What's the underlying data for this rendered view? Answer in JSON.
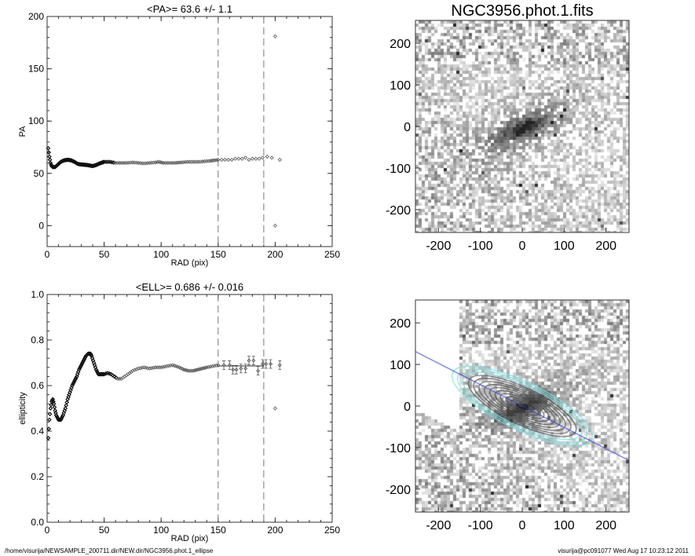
{
  "footer": {
    "left": "/home/visurija/NEWSAMPLE_200711.dir/NEW.dir/NGC3956.phot.1_ellipse",
    "right": "visurija@pc091077  Wed Aug 17 10:23:12 2011"
  },
  "chart_data": [
    {
      "type": "scatter",
      "title": "<PA>=  63.6 +/-   1.1",
      "xlabel": "RAD (pix)",
      "ylabel": "PA",
      "xlim": [
        0,
        250
      ],
      "ylim": [
        -20,
        200
      ],
      "xticks": [
        0,
        50,
        100,
        150,
        200,
        250
      ],
      "yticks": [
        0,
        50,
        100,
        150,
        200
      ],
      "vlines": [
        150,
        190
      ],
      "points": [
        [
          1,
          74
        ],
        [
          1.5,
          70
        ],
        [
          2,
          66
        ],
        [
          3,
          60
        ],
        [
          4,
          57
        ],
        [
          5,
          56
        ],
        [
          7,
          56
        ],
        [
          9,
          58
        ],
        [
          12,
          61
        ],
        [
          15,
          62.5
        ],
        [
          18,
          63
        ],
        [
          21,
          62.5
        ],
        [
          24,
          61
        ],
        [
          27,
          59
        ],
        [
          30,
          58.5
        ],
        [
          35,
          58
        ],
        [
          40,
          57
        ],
        [
          43,
          58
        ],
        [
          46,
          59.5
        ],
        [
          50,
          61
        ],
        [
          55,
          61
        ],
        [
          60,
          60
        ],
        [
          65,
          60
        ],
        [
          70,
          60
        ],
        [
          75,
          60.5
        ],
        [
          80,
          60
        ],
        [
          85,
          59.5
        ],
        [
          90,
          60
        ],
        [
          95,
          60.5
        ],
        [
          98,
          61
        ],
        [
          102,
          60
        ],
        [
          107,
          60
        ],
        [
          112,
          60
        ],
        [
          118,
          60.5
        ],
        [
          123,
          61
        ],
        [
          128,
          61
        ],
        [
          133,
          61
        ],
        [
          138,
          61.5
        ],
        [
          143,
          62
        ],
        [
          147,
          62.5
        ],
        [
          150,
          63
        ],
        [
          153,
          63
        ],
        [
          156,
          63
        ],
        [
          159,
          63
        ],
        [
          162,
          63
        ],
        [
          165,
          64
        ],
        [
          168,
          64
        ],
        [
          171,
          64
        ],
        [
          174,
          65
        ],
        [
          177,
          63
        ],
        [
          180,
          64
        ],
        [
          183,
          64
        ],
        [
          186,
          64
        ],
        [
          189,
          65
        ],
        [
          193,
          66
        ],
        [
          197,
          65
        ],
        [
          200,
          181
        ],
        [
          200,
          0
        ],
        [
          204,
          63
        ]
      ]
    },
    {
      "type": "scatter",
      "title": "<ELL>= 0.686 +/-  0.016",
      "xlabel": "RAD (pix)",
      "ylabel": "ellipticity",
      "xlim": [
        0,
        250
      ],
      "ylim": [
        0,
        1
      ],
      "xticks": [
        0,
        50,
        100,
        150,
        200,
        250
      ],
      "yticks": [
        "0.0",
        "0.2",
        "0.4",
        "0.6",
        "0.8",
        "1.0"
      ],
      "vlines": [
        150,
        190
      ],
      "mean_line": {
        "value": 0.686,
        "x": [
          150,
          190
        ]
      },
      "points": [
        [
          1,
          0.37
        ],
        [
          1.5,
          0.41
        ],
        [
          2,
          0.45
        ],
        [
          3,
          0.5
        ],
        [
          4,
          0.53
        ],
        [
          5,
          0.54
        ],
        [
          6,
          0.52
        ],
        [
          7,
          0.49
        ],
        [
          8,
          0.47
        ],
        [
          10,
          0.45
        ],
        [
          12,
          0.45
        ],
        [
          14,
          0.47
        ],
        [
          16,
          0.5
        ],
        [
          18,
          0.54
        ],
        [
          20,
          0.57
        ],
        [
          22,
          0.6
        ],
        [
          24,
          0.62
        ],
        [
          26,
          0.64
        ],
        [
          28,
          0.67
        ],
        [
          30,
          0.69
        ],
        [
          32,
          0.71
        ],
        [
          34,
          0.73
        ],
        [
          36,
          0.74
        ],
        [
          38,
          0.74
        ],
        [
          39,
          0.73
        ],
        [
          41,
          0.7
        ],
        [
          43,
          0.67
        ],
        [
          45,
          0.65
        ],
        [
          48,
          0.65
        ],
        [
          50,
          0.65
        ],
        [
          53,
          0.655
        ],
        [
          56,
          0.65
        ],
        [
          59,
          0.64
        ],
        [
          62,
          0.63
        ],
        [
          65,
          0.63
        ],
        [
          68,
          0.64
        ],
        [
          71,
          0.65
        ],
        [
          75,
          0.665
        ],
        [
          80,
          0.675
        ],
        [
          85,
          0.68
        ],
        [
          90,
          0.675
        ],
        [
          95,
          0.68
        ],
        [
          100,
          0.68
        ],
        [
          105,
          0.685
        ],
        [
          110,
          0.69
        ],
        [
          113,
          0.685
        ],
        [
          116,
          0.68
        ],
        [
          120,
          0.67
        ],
        [
          124,
          0.665
        ],
        [
          128,
          0.665
        ],
        [
          132,
          0.67
        ],
        [
          136,
          0.675
        ],
        [
          140,
          0.68
        ],
        [
          145,
          0.685
        ],
        [
          150,
          0.69
        ],
        [
          155,
          0.69
        ],
        [
          160,
          0.69
        ],
        [
          163,
          0.67
        ],
        [
          166,
          0.67
        ],
        [
          170,
          0.675
        ],
        [
          174,
          0.675
        ],
        [
          177,
          0.71
        ],
        [
          181,
          0.71
        ],
        [
          185,
          0.665
        ],
        [
          189,
          0.695
        ],
        [
          192,
          0.695
        ],
        [
          196,
          0.695
        ],
        [
          200,
          0.5
        ],
        [
          204,
          0.69
        ]
      ],
      "error_from_radius": 155,
      "error": 0.012
    },
    {
      "type": "heatmap",
      "title": "NGC3956.phot.1.fits",
      "xlim": [
        -255,
        255
      ],
      "ylim": [
        -255,
        255
      ],
      "xticks": [
        -200,
        -100,
        0,
        100,
        200
      ],
      "yticks": [
        -200,
        -100,
        0,
        100,
        200
      ],
      "galaxy_pa": 63.6,
      "galaxy_ell": 0.686
    },
    {
      "type": "heatmap",
      "title": "",
      "xlim": [
        -255,
        255
      ],
      "ylim": [
        -255,
        255
      ],
      "xticks": [
        -200,
        -100,
        0,
        100,
        200
      ],
      "yticks": [
        -200,
        -100,
        0,
        100,
        200
      ],
      "contour_color_inner": "#555555",
      "contour_color_outer": "#7fe0e0",
      "axis_line_color": "#3333cc"
    }
  ]
}
